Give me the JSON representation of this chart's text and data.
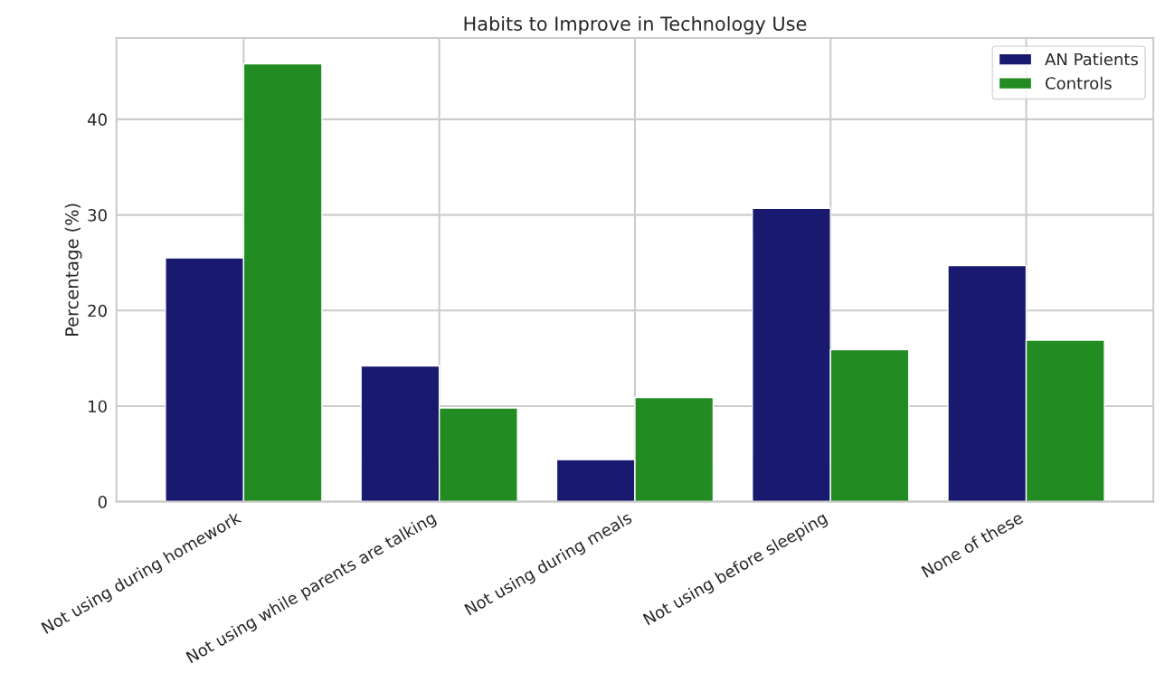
{
  "chart_data": {
    "type": "bar",
    "title": "Habits to Improve in Technology Use",
    "ylabel": "Percentage (%)",
    "categories": [
      "Not using during homework",
      "Not using while parents are talking",
      "Not using during meals",
      "Not using before sleeping",
      "None of these"
    ],
    "series": [
      {
        "name": "AN Patients",
        "color": "#191970",
        "values": [
          25.5,
          14.2,
          4.4,
          30.7,
          24.7
        ]
      },
      {
        "name": "Controls",
        "color": "#228b22",
        "values": [
          45.8,
          9.8,
          10.9,
          15.9,
          16.9
        ]
      }
    ],
    "ylim": [
      0,
      48.5
    ],
    "yticks": [
      0,
      10,
      20,
      30,
      40
    ],
    "grid": true,
    "legend": "top right"
  }
}
